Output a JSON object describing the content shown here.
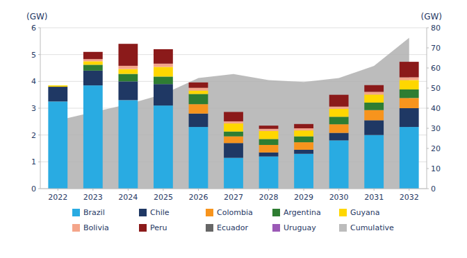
{
  "chart_data": {
    "type": "bar",
    "stacked": true,
    "grid": true,
    "legend": "bottom",
    "y_label": "(GW)",
    "y2_label": "(GW)",
    "categories": [
      "2022",
      "2023",
      "2024",
      "2025",
      "2026",
      "2027",
      "2028",
      "2029",
      "2030",
      "2031",
      "2032"
    ],
    "ylim": [
      0,
      6
    ],
    "yticks": [
      0,
      1,
      2,
      3,
      4,
      5,
      6
    ],
    "y2lim": [
      0,
      80
    ],
    "y2ticks": [
      0,
      10,
      20,
      30,
      40,
      50,
      60,
      70,
      80
    ],
    "series": [
      {
        "name": "Brazil",
        "color": "#29ABE2",
        "values": [
          3.25,
          3.85,
          3.3,
          3.1,
          2.3,
          1.15,
          1.2,
          1.3,
          1.8,
          2.0,
          2.3
        ]
      },
      {
        "name": "Chile",
        "color": "#1F3864",
        "values": [
          0.55,
          0.55,
          0.7,
          0.8,
          0.5,
          0.55,
          0.15,
          0.15,
          0.28,
          0.55,
          0.7
        ]
      },
      {
        "name": "Colombia",
        "color": "#F7941D",
        "values": [
          0.0,
          0.0,
          0.0,
          0.0,
          0.35,
          0.25,
          0.28,
          0.28,
          0.32,
          0.38,
          0.38
        ]
      },
      {
        "name": "Argentina",
        "color": "#2E7D32",
        "values": [
          0.0,
          0.22,
          0.28,
          0.28,
          0.38,
          0.18,
          0.22,
          0.22,
          0.28,
          0.28,
          0.32
        ]
      },
      {
        "name": "Guyana",
        "color": "#FFD700",
        "values": [
          0.05,
          0.13,
          0.18,
          0.36,
          0.13,
          0.3,
          0.3,
          0.22,
          0.3,
          0.3,
          0.35
        ]
      },
      {
        "name": "Bolivia",
        "color": "#F4A58A",
        "values": [
          0.0,
          0.08,
          0.12,
          0.12,
          0.1,
          0.08,
          0.08,
          0.08,
          0.08,
          0.1,
          0.1
        ]
      },
      {
        "name": "Peru",
        "color": "#8B1A1A",
        "values": [
          0.0,
          0.27,
          0.82,
          0.54,
          0.2,
          0.35,
          0.12,
          0.16,
          0.44,
          0.25,
          0.58
        ]
      },
      {
        "name": "Ecuador",
        "color": "#666666",
        "values": [
          0.0,
          0.0,
          0.0,
          0.0,
          0.0,
          0.0,
          0.0,
          0.0,
          0.0,
          0.0,
          0.0
        ]
      },
      {
        "name": "Uruguay",
        "color": "#9B59B6",
        "values": [
          0.0,
          0.0,
          0.0,
          0.0,
          0.0,
          0.0,
          0.0,
          0.0,
          0.0,
          0.0,
          0.0
        ]
      },
      {
        "name": "Cumulative",
        "type": "area",
        "axis": "y2",
        "color": "#B0B0B0",
        "values": [
          34,
          38,
          42,
          47,
          55,
          57,
          54,
          53,
          55,
          61,
          75
        ]
      }
    ]
  }
}
